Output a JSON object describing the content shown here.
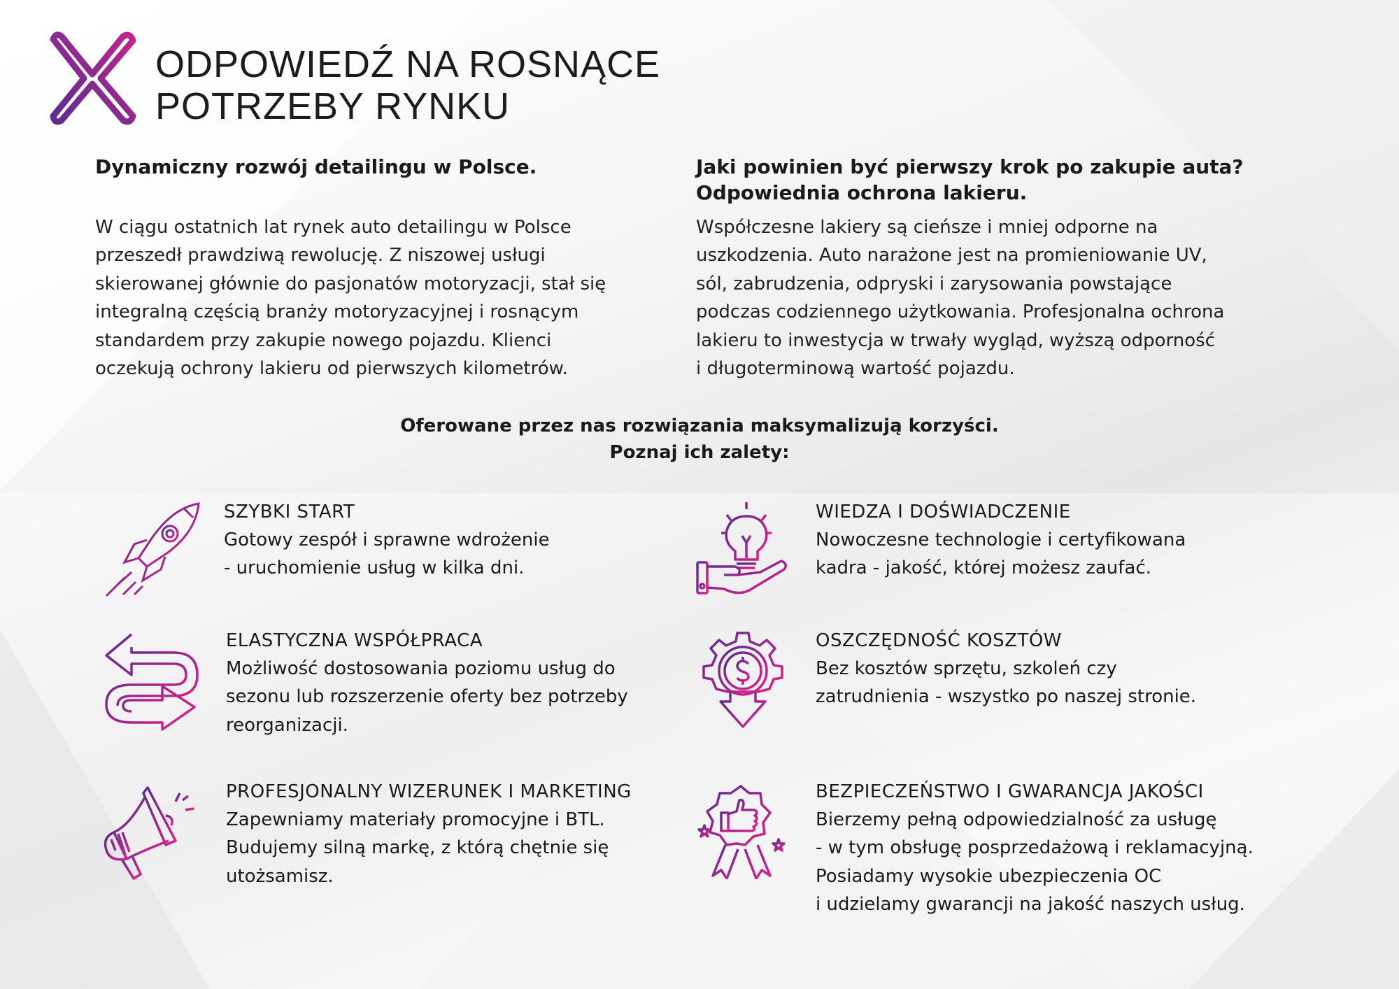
{
  "header": {
    "title_line1": "ODPOWIEDŹ NA ROSNĄCE",
    "title_line2": "POTRZEBY RYNKU",
    "logo_icon": "x-logo"
  },
  "colors": {
    "accent_purple": "#5b2d90",
    "accent_pink": "#e0208a"
  },
  "left_section": {
    "heading": "Dynamiczny rozwój detailingu w Polsce.",
    "lines": [
      "W ciągu ostatnich lat rynek auto detailingu w Polsce",
      "przeszedł prawdziwą rewolucję. Z niszowej usługi",
      "skierowanej głównie do pasjonatów motoryzacji, stał się",
      "integralną częścią branży motoryzacyjnej i rosnącym",
      "standardem przy zakupie nowego pojazdu. Klienci",
      "oczekują ochrony lakieru od pierwszych kilometrów."
    ]
  },
  "right_section": {
    "heading_line1": "Jaki powinien być pierwszy krok po zakupie auta?",
    "heading_line2": "Odpowiednia ochrona lakieru.",
    "lines": [
      "Współczesne lakiery są cieńsze i mniej odporne na",
      "uszkodzenia. Auto narażone jest na promieniowanie UV,",
      "sól, zabrudzenia, odpryski i zarysowania powstające",
      "podczas codziennego użytkowania. Profesjonalna ochrona",
      "lakieru to inwestycja w trwały wygląd, wyższą odporność",
      "i długoterminową  wartość pojazdu."
    ]
  },
  "intro": {
    "line1": "Oferowane przez nas rozwiązania maksymalizują korzyści.",
    "line2": "Poznaj ich zalety:"
  },
  "features": [
    {
      "icon": "rocket-icon",
      "title": "SZYBKI START",
      "lines": [
        "Gotowy zespół i sprawne wdrożenie",
        "- uruchomienie usług w kilka dni."
      ]
    },
    {
      "icon": "lightbulb-hand-icon",
      "title": "WIEDZA I DOŚWIADCZENIE",
      "lines": [
        "Nowoczesne technologie i certyfikowana",
        "kadra - jakość, której możesz zaufać."
      ]
    },
    {
      "icon": "arrows-icon",
      "title": "ELASTYCZNA WSPÓŁPRACA",
      "lines": [
        "Możliwość dostosowania poziomu usług do",
        "sezonu lub rozszerzenie oferty bez potrzeby",
        "reorganizacji."
      ]
    },
    {
      "icon": "gear-dollar-icon",
      "title": "OSZCZĘDNOŚĆ KOSZTÓW",
      "lines": [
        "Bez kosztów sprzętu, szkoleń czy",
        "zatrudnienia - wszystko po naszej stronie."
      ]
    },
    {
      "icon": "megaphone-icon",
      "title": "PROFESJONALNY WIZERUNEK I MARKETING",
      "lines": [
        "Zapewniamy materiały promocyjne i BTL.",
        "Budujemy silną markę, z którą chętnie się",
        "utożsamisz."
      ]
    },
    {
      "icon": "award-thumbs-up-icon",
      "title": "BEZPIECZEŃSTWO I GWARANCJA JAKOŚCI",
      "lines": [
        "Bierzemy pełną odpowiedzialność za usługę",
        "- w tym obsługę posprzedażową i reklamacyjną.",
        "Posiadamy wysokie ubezpieczenia OC",
        "i udzielamy gwarancji na jakość naszych usług."
      ]
    }
  ]
}
